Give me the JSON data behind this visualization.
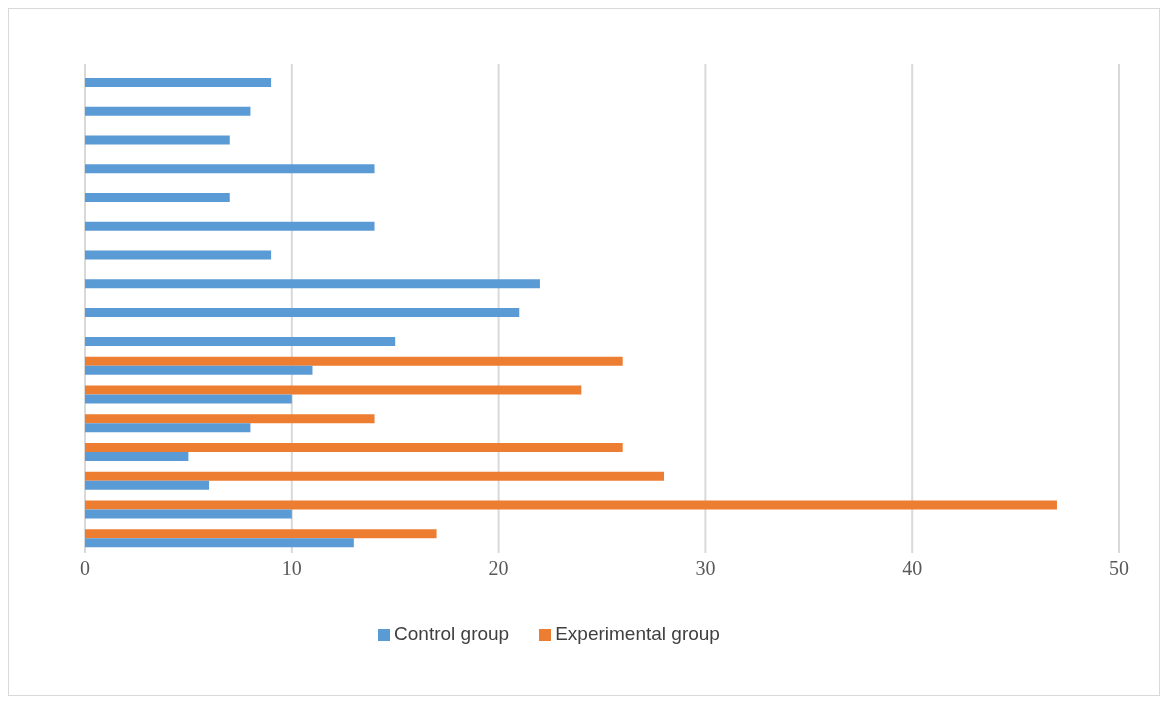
{
  "chart_data": {
    "type": "bar",
    "orientation": "horizontal",
    "categories": [
      null,
      null,
      null,
      null,
      null,
      null,
      null,
      null,
      null,
      null,
      null,
      null,
      null,
      null,
      null,
      null,
      null
    ],
    "series": [
      {
        "name": "Experimental group",
        "color": "#ed7d31",
        "values": [
          null,
          null,
          null,
          null,
          null,
          null,
          null,
          null,
          null,
          null,
          26,
          24,
          14,
          26,
          28,
          47,
          17
        ]
      },
      {
        "name": "Control group",
        "color": "#5b9bd5",
        "values": [
          9,
          8,
          7,
          14,
          7,
          14,
          9,
          22,
          21,
          15,
          11,
          10,
          8,
          5,
          6,
          10,
          13
        ]
      }
    ],
    "xlim": [
      0,
      50
    ],
    "xticks": [
      0,
      10,
      20,
      30,
      40,
      50
    ],
    "grid": "x",
    "legend": "bottom"
  }
}
